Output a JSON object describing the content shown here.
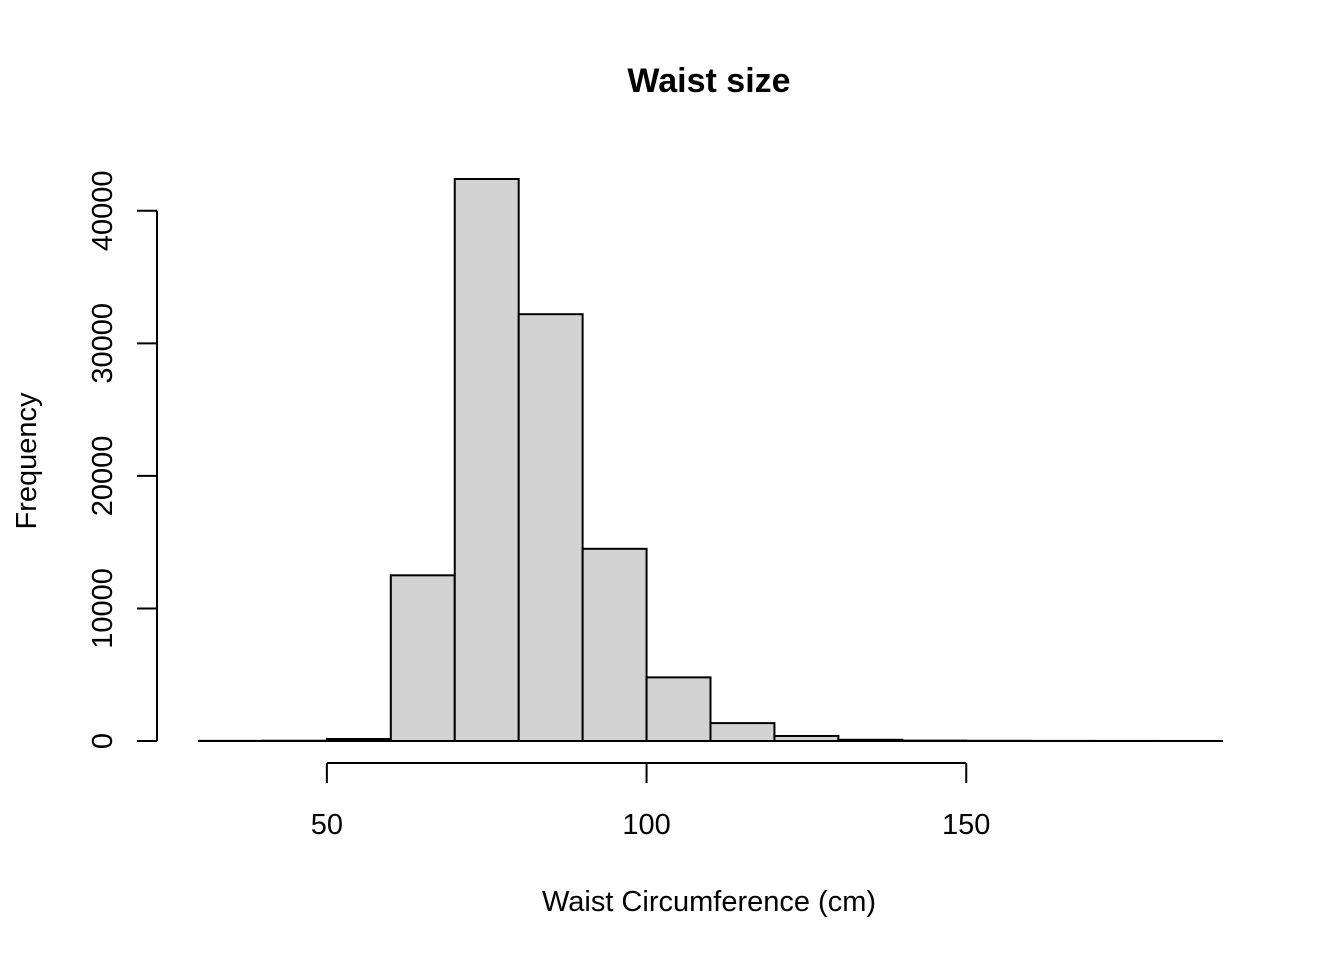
{
  "chart_data": {
    "type": "bar",
    "title": "Waist size",
    "xlabel": "Waist Circumference (cm)",
    "ylabel": "Frequency",
    "bin_edges": [
      30,
      40,
      50,
      60,
      70,
      80,
      90,
      100,
      110,
      120,
      130,
      140,
      150,
      160,
      170,
      180,
      190
    ],
    "values": [
      10,
      20,
      150,
      12500,
      42400,
      32200,
      14500,
      4800,
      1350,
      380,
      90,
      30,
      15,
      8,
      5,
      3
    ],
    "x_ticks": [
      50,
      100,
      150
    ],
    "y_ticks": [
      0,
      10000,
      20000,
      30000,
      40000
    ],
    "xlim": [
      30,
      190
    ],
    "ylim": [
      0,
      42400
    ],
    "grid": false,
    "bar_fill": "#d3d3d3",
    "bar_stroke": "#000000"
  }
}
